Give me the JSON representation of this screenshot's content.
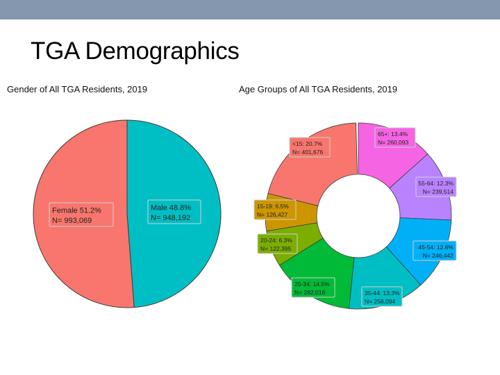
{
  "slide": {
    "title": "TGA Demographics"
  },
  "chart_data": [
    {
      "type": "pie",
      "title": "Gender of All TGA Residents, 2019",
      "slices": [
        {
          "category": "Female",
          "percent": 51.2,
          "count": 993069,
          "label": "Female 51.2%",
          "n_label": "N= 993,069",
          "color": "#f8766d"
        },
        {
          "category": "Male",
          "percent": 48.8,
          "count": 948192,
          "label": "Male 48.8%",
          "n_label": "N= 948,192",
          "color": "#00bfc4"
        }
      ]
    },
    {
      "type": "pie",
      "subtype": "donut",
      "title": "Age Groups of All TGA Residents, 2019",
      "slices": [
        {
          "category": "65+",
          "percent": 13.4,
          "count": 260093,
          "label": "65+: 13.4%",
          "n_label": "N= 260,093",
          "color": "#f564e3"
        },
        {
          "category": "55-64",
          "percent": 12.3,
          "count": 239514,
          "label": "55-64: 12.3%",
          "n_label": "N= 239,514",
          "color": "#b983ff"
        },
        {
          "category": "45-54",
          "percent": 12.6,
          "count": 246442,
          "label": "45-54: 12.6%",
          "n_label": "N= 246,442",
          "color": "#00b0f6"
        },
        {
          "category": "35-44",
          "percent": 13.3,
          "count": 258094,
          "label": "35-44: 13.3%",
          "n_label": "N= 258,094",
          "color": "#00bfc4"
        },
        {
          "category": "25-34",
          "percent": 14.5,
          "count": 282016,
          "label": "25-34: 14.5%",
          "n_label": "N= 282,016",
          "color": "#00ba38"
        },
        {
          "category": "20-24",
          "percent": 6.3,
          "count": 122395,
          "label": "20-24: 6.3%",
          "n_label": "N= 122,395",
          "color": "#7cae00"
        },
        {
          "category": "15-19",
          "percent": 6.5,
          "count": 126427,
          "label": "15-19: 6.5%",
          "n_label": "N= 126,427",
          "color": "#cd9600"
        },
        {
          "category": "<15",
          "percent": 20.7,
          "count": 401676,
          "label": "<15: 20.7%",
          "n_label": "N= 401,676",
          "color": "#f8766d"
        }
      ]
    }
  ]
}
